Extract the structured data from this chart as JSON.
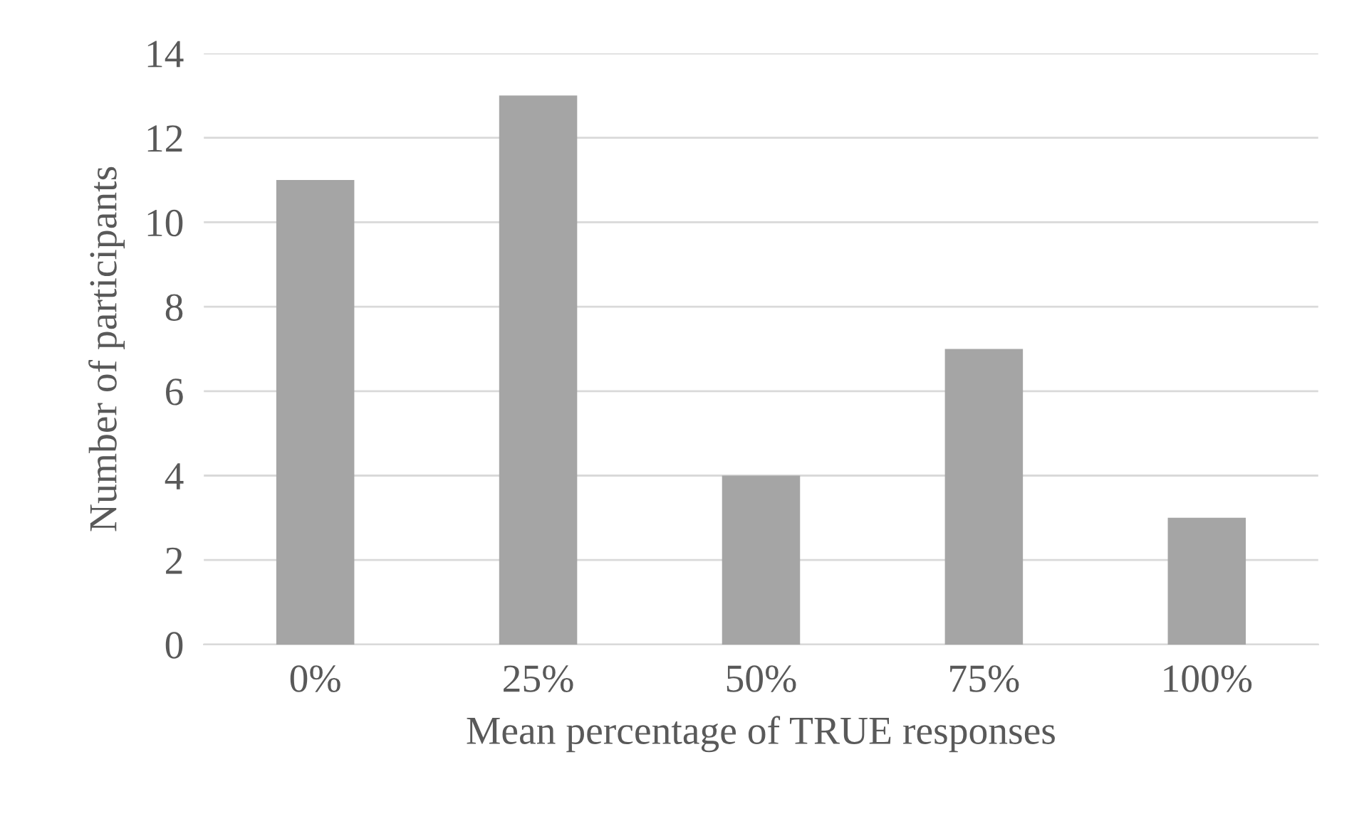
{
  "chart_data": {
    "type": "bar",
    "xlabel": "Mean percentage of TRUE responses",
    "ylabel": "Number of participants",
    "categories": [
      "0%",
      "25%",
      "50%",
      "75%",
      "100%"
    ],
    "values": [
      11,
      13,
      4,
      7,
      3
    ],
    "color": "#a5a5a5",
    "ylim": [
      0,
      14
    ],
    "yticks": [
      0,
      2,
      4,
      6,
      8,
      10,
      12,
      14
    ],
    "grid": "y"
  }
}
